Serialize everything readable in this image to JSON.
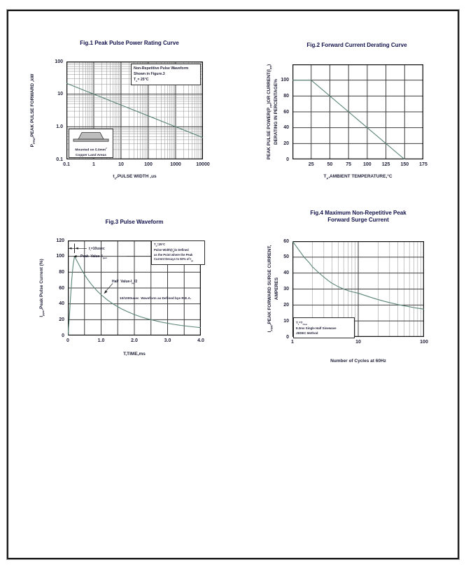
{
  "page": {
    "background": "#ffffff",
    "frame_color": "#1a1a1a"
  },
  "colors": {
    "curve": "#5a8478",
    "grid_major": "#3d3d3d",
    "grid_minor": "#8f8f8f",
    "frame": "#141414",
    "text": "#1f1f38",
    "title": "#10104a"
  },
  "chart_data": [
    {
      "id": "fig1",
      "type": "line",
      "title": "Fig.1  Peak Pulse Power Rating Curve",
      "xlabel": "t_{d},PULSE WIDTH ,us",
      "ylabel": "P_{PPM},PEAK PULSE FORWARD ,kW",
      "x_axis": {
        "scale": "log",
        "min": 0.1,
        "max": 10000,
        "ticks": [
          {
            "v": 0.1,
            "label": "0.1"
          },
          {
            "v": 1,
            "label": "1"
          },
          {
            "v": 10,
            "label": "10"
          },
          {
            "v": 100,
            "label": "100"
          },
          {
            "v": 1000,
            "label": "1000"
          },
          {
            "v": 10000,
            "label": "10000"
          }
        ]
      },
      "y_axis": {
        "scale": "log",
        "min": 0.1,
        "max": 100,
        "ticks": [
          {
            "v": 100,
            "label": "100"
          },
          {
            "v": 10,
            "label": "10"
          },
          {
            "v": 1,
            "label": "1.0"
          },
          {
            "v": 0.1,
            "label": "0.1"
          }
        ]
      },
      "series": [
        {
          "name": "peak-pulse-power",
          "points": [
            [
              0.1,
              21.5
            ],
            [
              1,
              10
            ],
            [
              10,
              4.64
            ],
            [
              100,
              2.15
            ],
            [
              1000,
              1.0
            ],
            [
              10000,
              0.464
            ]
          ]
        }
      ],
      "annotations": {
        "note": "Non-Repetitive Pulse Waveform\nShown in Figure.3\nT_{A}= 25°C",
        "inset": "Mounted on 5.0mm^{2}\nCopper Land Areas"
      }
    },
    {
      "id": "fig2",
      "type": "line",
      "title": "Fig.2  Forward Current Derating Curve",
      "xlabel": "T_{A},AMBIENT TEMPERATURE,°C",
      "ylabel": "PEAK PULSE POWER(P_{PP})OR CURRENT(I_{PP})\nDERATING IN PERCENTAGE%",
      "x_axis": {
        "scale": "linear",
        "min": 0,
        "max": 175,
        "step": 25,
        "ticks": [
          {
            "v": 25,
            "label": "25"
          },
          {
            "v": 50,
            "label": "50"
          },
          {
            "v": 75,
            "label": "75"
          },
          {
            "v": 100,
            "label": "100"
          },
          {
            "v": 125,
            "label": "125"
          },
          {
            "v": 150,
            "label": "150"
          },
          {
            "v": 175,
            "label": "175"
          }
        ]
      },
      "y_axis": {
        "scale": "linear",
        "min": 0,
        "max": 120,
        "step": 20,
        "ticks": [
          {
            "v": 0,
            "label": "0"
          },
          {
            "v": 20,
            "label": "20"
          },
          {
            "v": 40,
            "label": "40"
          },
          {
            "v": 60,
            "label": "60"
          },
          {
            "v": 80,
            "label": "80"
          },
          {
            "v": 100,
            "label": "100"
          }
        ]
      },
      "series": [
        {
          "name": "derating",
          "points": [
            [
              0,
              100
            ],
            [
              25,
              100
            ],
            [
              150,
              0
            ]
          ]
        }
      ],
      "annotations": {}
    },
    {
      "id": "fig3",
      "type": "line",
      "title": "Fig.3  Pulse Waveform",
      "xlabel": "T,TIME,ms",
      "ylabel": "I_{ppm},Peak Pulse Current (%)",
      "x_axis": {
        "scale": "linear",
        "min": 0,
        "max": 4,
        "step": 0.5,
        "ticks": [
          {
            "v": 0,
            "label": "0"
          },
          {
            "v": 1,
            "label": "1.0"
          },
          {
            "v": 2,
            "label": "2.0"
          },
          {
            "v": 3,
            "label": "3.0"
          },
          {
            "v": 4,
            "label": "4.0"
          }
        ]
      },
      "y_axis": {
        "scale": "linear",
        "min": 0,
        "max": 120,
        "step": 20,
        "ticks": [
          {
            "v": 0,
            "label": "0"
          },
          {
            "v": 20,
            "label": "20"
          },
          {
            "v": 40,
            "label": "40"
          },
          {
            "v": 60,
            "label": "60"
          },
          {
            "v": 80,
            "label": "80"
          },
          {
            "v": 100,
            "label": "100"
          },
          {
            "v": 120,
            "label": "120"
          }
        ]
      },
      "series": [
        {
          "name": "pulse-waveform",
          "points": [
            [
              0,
              0
            ],
            [
              0.04,
              20
            ],
            [
              0.08,
              48
            ],
            [
              0.12,
              72
            ],
            [
              0.16,
              90
            ],
            [
              0.2,
              100
            ],
            [
              0.25,
              96
            ],
            [
              0.3,
              92
            ],
            [
              0.4,
              84
            ],
            [
              0.5,
              77
            ],
            [
              0.6,
              70.5
            ],
            [
              0.7,
              65
            ],
            [
              0.8,
              60
            ],
            [
              0.9,
              55.5
            ],
            [
              1.0,
              51.5
            ],
            [
              1.1,
              48
            ],
            [
              1.2,
              44.5
            ],
            [
              1.4,
              38.8
            ],
            [
              1.6,
              34
            ],
            [
              1.8,
              30
            ],
            [
              2.0,
              26.5
            ],
            [
              2.2,
              23.5
            ],
            [
              2.4,
              21
            ],
            [
              2.6,
              19
            ],
            [
              2.8,
              17
            ],
            [
              3.0,
              15.5
            ],
            [
              3.2,
              14
            ],
            [
              3.4,
              12.8
            ],
            [
              3.6,
              11.8
            ],
            [
              3.8,
              10.8
            ],
            [
              4.0,
              10
            ]
          ]
        }
      ],
      "annotations": {
        "note": "T_{A}=25°C\nPulse Width(t_{d})is Defined\nas the Point where the Peak\nCurrent Decays to 50% of I_{pp}",
        "tr": "t_{r}=10usec",
        "peak": "Peak  Value  I_{ppm}",
        "half": "Half  Value-I_{pp}/2",
        "rea": "10/1000usec  Waveform as Defined bye R.E.A."
      }
    },
    {
      "id": "fig4",
      "type": "line",
      "title": "Fig.4  Maximum Non-Repetitive Peak\nForward Surge Current",
      "xlabel": "Number of Cycles at 60Hz",
      "ylabel": "I_{FSM},PEAK FORWARD SURGE CURRENT,\nAMPERES",
      "x_axis": {
        "scale": "log",
        "min": 1,
        "max": 100,
        "ticks": [
          {
            "v": 1,
            "label": "1"
          },
          {
            "v": 10,
            "label": "10"
          },
          {
            "v": 100,
            "label": "100"
          }
        ]
      },
      "y_axis": {
        "scale": "linear",
        "min": 0,
        "max": 60,
        "step": 10,
        "ticks": [
          {
            "v": 0,
            "label": "0"
          },
          {
            "v": 10,
            "label": "10"
          },
          {
            "v": 20,
            "label": "20"
          },
          {
            "v": 30,
            "label": "30"
          },
          {
            "v": 40,
            "label": "40"
          },
          {
            "v": 50,
            "label": "50"
          },
          {
            "v": 60,
            "label": "60"
          }
        ]
      },
      "series": [
        {
          "name": "surge-current",
          "points": [
            [
              1,
              60
            ],
            [
              1.2,
              55.5
            ],
            [
              1.5,
              50
            ],
            [
              1.8,
              46.5
            ],
            [
              2,
              44
            ],
            [
              2.5,
              40.3
            ],
            [
              3,
              37.5
            ],
            [
              3.5,
              35.3
            ],
            [
              4,
              33.6
            ],
            [
              5,
              31.4
            ],
            [
              6,
              30
            ],
            [
              7,
              29
            ],
            [
              8,
              28.3
            ],
            [
              9,
              27.8
            ],
            [
              10,
              27.4
            ],
            [
              12,
              26.3
            ],
            [
              15,
              25
            ],
            [
              20,
              23.4
            ],
            [
              25,
              22.3
            ],
            [
              30,
              21.5
            ],
            [
              40,
              20.3
            ],
            [
              50,
              19.5
            ],
            [
              60,
              18.9
            ],
            [
              70,
              18.4
            ],
            [
              80,
              18
            ],
            [
              90,
              17.7
            ],
            [
              100,
              17.4
            ]
          ]
        }
      ],
      "annotations": {
        "note": "T_{J}=T_{Jmax}\n8.3ms Single Half Sinewave\nJEDEC Method"
      }
    }
  ]
}
